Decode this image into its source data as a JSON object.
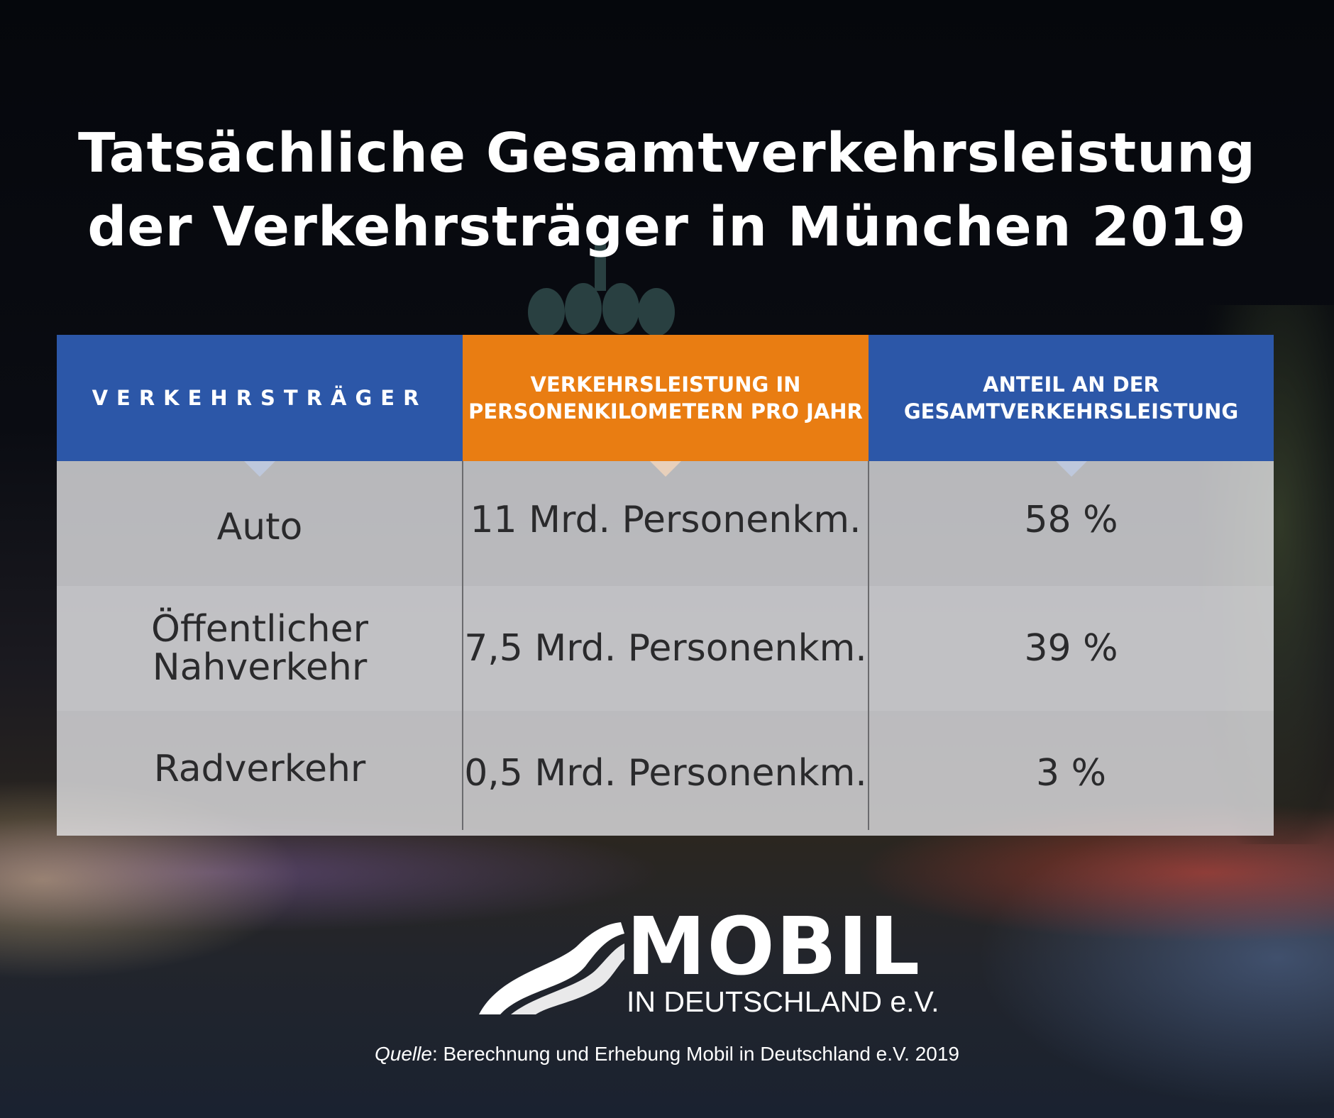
{
  "title_line1": "Tatsächliche Gesamtverkehrsleistung",
  "title_line2": "der Verkehrsträger in München 2019",
  "chart_data": {
    "type": "table",
    "title": "Tatsächliche Gesamtverkehrsleistung der Verkehrsträger in München 2019",
    "columns": [
      "VERKEHRSTRÄGER",
      "VERKEHRSLEISTUNG IN PERSONENKILOMETERN PRO JAHR",
      "ANTEIL AN DER GESAMTVERKEHRSLEISTUNG"
    ],
    "rows": [
      [
        "Auto",
        "11 Mrd. Personenkm.",
        "58 %"
      ],
      [
        "Öffentlicher Nahverkehr",
        "7,5 Mrd. Personenkm.",
        "39 %"
      ],
      [
        "Radverkehr",
        "0,5 Mrd. Personenkm.",
        "3 %"
      ]
    ],
    "values_mrd_personenkm": [
      11,
      7.5,
      0.5
    ],
    "shares_percent": [
      58,
      39,
      3
    ]
  },
  "header": {
    "col1": "VERKEHRSTRÄGER",
    "col2_line1": "VERKEHRSLEISTUNG IN",
    "col2_line2": "PERSONENKILOMETERN PRO JAHR",
    "col3_line1": "ANTEIL AN DER",
    "col3_line2": "GESAMTVERKEHRSLEISTUNG"
  },
  "rows": [
    {
      "mode_line1": "Auto",
      "mode_line2": "",
      "value": "11 Mrd. Personenkm.",
      "share": "58 %"
    },
    {
      "mode_line1": "Öffentlicher",
      "mode_line2": "Nahverkehr",
      "value": "7,5 Mrd. Personenkm.",
      "share": "39 %"
    },
    {
      "mode_line1": "Radverkehr",
      "mode_line2": "",
      "value": "0,5 Mrd. Personenkm.",
      "share": "3 %"
    }
  ],
  "logo": {
    "name": "MOBIL",
    "sub": "IN DEUTSCHLAND e.V."
  },
  "source": {
    "label": "Quelle",
    "text": ": Berechnung und Erhebung Mobil in Deutschland e.V. 2019"
  },
  "colors": {
    "blue": "#2c57a8",
    "orange": "#e97d12",
    "text_dark": "#2a2a2c"
  }
}
